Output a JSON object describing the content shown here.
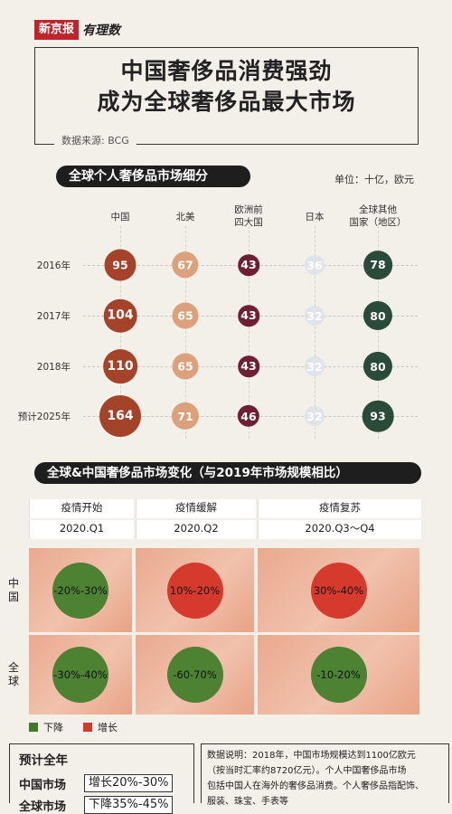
{
  "header": {
    "brand_main": "新京报",
    "brand_sub": "有理数",
    "title_line1": "中国奢侈品消费强劲",
    "title_line2": "成为全球奢侈品最大市场",
    "source": "数据来源: BCG"
  },
  "section1": {
    "title": "全球个人奢侈品市场细分",
    "unit": "单位：十亿，欧元"
  },
  "chart_data": [
    {
      "type": "bubble",
      "title": "全球个人奢侈品市场细分",
      "unit": "单位：十亿，欧元",
      "columns": [
        "中国",
        "北美",
        "欧洲前四大国",
        "日本",
        "全球其他国家（地区）"
      ],
      "column_lines": [
        [
          "中国"
        ],
        [
          "北美"
        ],
        [
          "欧洲前",
          "四大国"
        ],
        [
          "日本"
        ],
        [
          "全球其他",
          "国家（地区）"
        ]
      ],
      "rows": [
        "2016年",
        "2017年",
        "2018年",
        "预计2025年"
      ],
      "values": [
        [
          95,
          67,
          43,
          36,
          78
        ],
        [
          104,
          65,
          43,
          32,
          80
        ],
        [
          110,
          65,
          43,
          32,
          80
        ],
        [
          164,
          71,
          46,
          32,
          93
        ]
      ],
      "colors": [
        "#a4432a",
        "#dca07a",
        "#6e1f33",
        "#dfe3ea",
        "#2a4a3a"
      ]
    },
    {
      "type": "table",
      "title": "全球&中国奢侈品市场变化（与2019年市场规模相比）",
      "phases": [
        {
          "name": "疫情开始",
          "period": "2020.Q1"
        },
        {
          "name": "疫情缓解",
          "period": "2020.Q2"
        },
        {
          "name": "疫情复苏",
          "period": "2020.Q3～Q4"
        }
      ],
      "regions": [
        "中国",
        "全球"
      ],
      "cells": [
        [
          {
            "value": "-20%-30%",
            "trend": "down"
          },
          {
            "value": "10%-20%",
            "trend": "up"
          },
          {
            "value": "30%-40%",
            "trend": "up"
          }
        ],
        [
          {
            "value": "-30%-40%",
            "trend": "down"
          },
          {
            "value": "-60-70%",
            "trend": "down"
          },
          {
            "value": "-10-20%",
            "trend": "down"
          }
        ]
      ],
      "legend": [
        {
          "label": "下降",
          "color": "#3f7a2b"
        },
        {
          "label": "增长",
          "color": "#d23a2a"
        }
      ]
    }
  ],
  "section2": {
    "title": "全球&中国奢侈品市场变化（与2019年市场规模相比）"
  },
  "summary": {
    "title": "预计全年",
    "china_label": "中国市场",
    "china_value": "增长20%-30%",
    "global_label": "全球市场",
    "global_value": "下降35%-45%"
  },
  "note": {
    "line1": "数据说明：2018年，中国市场规模达到1100亿欧元",
    "line2": "（按当时汇率约8720亿元）。个人中国奢侈品市场",
    "line3": "包括中国人在海外的奢侈品消费。个人奢侈品指配饰、",
    "line4": "服装、珠宝、手表等"
  }
}
